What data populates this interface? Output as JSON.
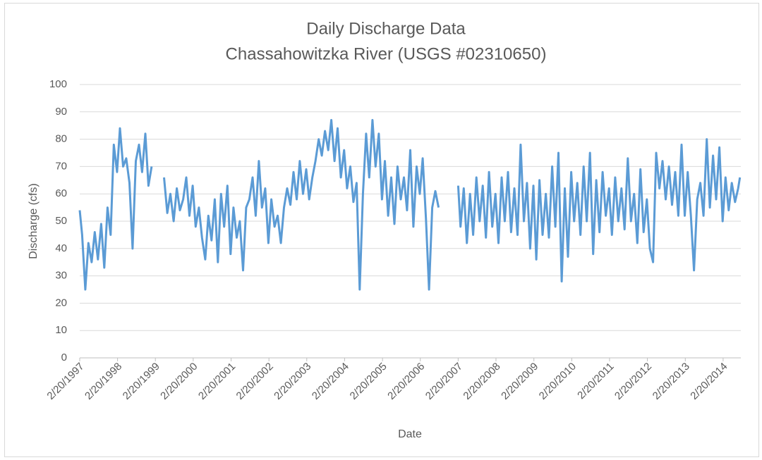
{
  "chart_data": {
    "type": "line",
    "title": "Daily Discharge Data",
    "subtitle": "Chassahowitzka River (USGS #02310650)",
    "x_label": "Date",
    "y_label": "Discharge (cfs)",
    "xlim": [
      "1997-02-20",
      "2014-08-10"
    ],
    "ylim": [
      0,
      100
    ],
    "yticks": [
      0,
      10,
      20,
      30,
      40,
      50,
      60,
      70,
      80,
      90,
      100
    ],
    "grid": true,
    "xticks": [
      {
        "value": "1997-02-20",
        "label": "2/20/1997"
      },
      {
        "value": "1998-02-20",
        "label": "2/20/1998"
      },
      {
        "value": "1999-02-20",
        "label": "2/20/1999"
      },
      {
        "value": "2000-02-20",
        "label": "2/20/2000"
      },
      {
        "value": "2001-02-20",
        "label": "2/20/2001"
      },
      {
        "value": "2002-02-20",
        "label": "2/20/2002"
      },
      {
        "value": "2003-02-20",
        "label": "2/20/2003"
      },
      {
        "value": "2004-02-20",
        "label": "2/20/2004"
      },
      {
        "value": "2005-02-20",
        "label": "2/20/2005"
      },
      {
        "value": "2006-02-20",
        "label": "2/20/2006"
      },
      {
        "value": "2007-02-20",
        "label": "2/20/2007"
      },
      {
        "value": "2008-02-20",
        "label": "2/20/2008"
      },
      {
        "value": "2009-02-20",
        "label": "2/20/2009"
      },
      {
        "value": "2010-02-20",
        "label": "2/20/2010"
      },
      {
        "value": "2011-02-20",
        "label": "2/20/2011"
      },
      {
        "value": "2012-02-20",
        "label": "2/20/2012"
      },
      {
        "value": "2013-02-20",
        "label": "2/20/2013"
      },
      {
        "value": "2014-02-20",
        "label": "2/20/2014"
      }
    ],
    "x": [
      "1997-02-20",
      "1997-03-15",
      "1997-04-15",
      "1997-05-15",
      "1997-06-15",
      "1997-07-15",
      "1997-08-15",
      "1997-09-15",
      "1997-10-15",
      "1997-11-15",
      "1997-12-15",
      "1998-01-15",
      "1998-02-15",
      "1998-03-15",
      "1998-04-15",
      "1998-05-15",
      "1998-06-15",
      "1998-07-15",
      "1998-08-15",
      "1998-09-15",
      "1998-10-15",
      "1998-11-15",
      "1998-12-15",
      "1999-01-15",
      "1999-03-15",
      "1999-05-15",
      "1999-06-15",
      "1999-07-15",
      "1999-08-15",
      "1999-09-15",
      "1999-10-15",
      "1999-11-15",
      "1999-12-15",
      "2000-01-15",
      "2000-02-15",
      "2000-03-15",
      "2000-04-15",
      "2000-05-15",
      "2000-06-15",
      "2000-07-15",
      "2000-08-15",
      "2000-09-15",
      "2000-10-15",
      "2000-11-15",
      "2000-12-15",
      "2001-01-15",
      "2001-02-15",
      "2001-03-15",
      "2001-04-15",
      "2001-05-15",
      "2001-06-15",
      "2001-07-15",
      "2001-08-15",
      "2001-09-15",
      "2001-10-15",
      "2001-11-15",
      "2001-12-15",
      "2002-01-15",
      "2002-02-15",
      "2002-03-15",
      "2002-04-15",
      "2002-05-15",
      "2002-06-15",
      "2002-07-15",
      "2002-08-15",
      "2002-09-15",
      "2002-10-15",
      "2002-11-15",
      "2002-12-15",
      "2003-01-15",
      "2003-02-15",
      "2003-03-15",
      "2003-04-15",
      "2003-05-15",
      "2003-06-15",
      "2003-07-15",
      "2003-08-15",
      "2003-09-15",
      "2003-10-15",
      "2003-11-15",
      "2003-12-15",
      "2004-01-15",
      "2004-02-15",
      "2004-03-15",
      "2004-04-15",
      "2004-05-15",
      "2004-06-15",
      "2004-07-15",
      "2004-08-15",
      "2004-09-15",
      "2004-10-15",
      "2004-11-15",
      "2004-12-15",
      "2005-01-15",
      "2005-02-15",
      "2005-03-15",
      "2005-04-15",
      "2005-05-15",
      "2005-06-15",
      "2005-07-15",
      "2005-08-15",
      "2005-09-15",
      "2005-10-15",
      "2005-11-15",
      "2005-12-15",
      "2006-01-15",
      "2006-02-15",
      "2006-03-15",
      "2006-04-15",
      "2006-05-15",
      "2006-06-15",
      "2006-07-15",
      "2006-08-15",
      "2006-10-15",
      "2007-02-20",
      "2007-03-15",
      "2007-04-15",
      "2007-05-15",
      "2007-06-15",
      "2007-07-15",
      "2007-08-15",
      "2007-09-15",
      "2007-10-15",
      "2007-11-15",
      "2007-12-15",
      "2008-01-15",
      "2008-02-15",
      "2008-03-15",
      "2008-04-15",
      "2008-05-15",
      "2008-06-15",
      "2008-07-15",
      "2008-08-15",
      "2008-09-15",
      "2008-10-15",
      "2008-11-15",
      "2008-12-15",
      "2009-01-15",
      "2009-02-15",
      "2009-03-15",
      "2009-04-15",
      "2009-05-15",
      "2009-06-15",
      "2009-07-15",
      "2009-08-15",
      "2009-09-15",
      "2009-10-15",
      "2009-11-15",
      "2009-12-15",
      "2010-01-15",
      "2010-02-15",
      "2010-03-15",
      "2010-04-15",
      "2010-05-15",
      "2010-06-15",
      "2010-07-15",
      "2010-08-15",
      "2010-09-15",
      "2010-10-15",
      "2010-11-15",
      "2010-12-15",
      "2011-01-15",
      "2011-02-15",
      "2011-03-15",
      "2011-04-15",
      "2011-05-15",
      "2011-06-15",
      "2011-07-15",
      "2011-08-15",
      "2011-09-15",
      "2011-10-15",
      "2011-11-15",
      "2011-12-15",
      "2012-01-15",
      "2012-02-15",
      "2012-03-15",
      "2012-04-15",
      "2012-05-15",
      "2012-06-15",
      "2012-07-15",
      "2012-08-15",
      "2012-09-15",
      "2012-10-15",
      "2012-11-15",
      "2012-12-15",
      "2013-01-15",
      "2013-02-15",
      "2013-03-15",
      "2013-04-15",
      "2013-05-15",
      "2013-06-15",
      "2013-07-15",
      "2013-08-15",
      "2013-09-15",
      "2013-10-15",
      "2013-11-15",
      "2013-12-15",
      "2014-01-15",
      "2014-02-15",
      "2014-03-15",
      "2014-04-15",
      "2014-05-15",
      "2014-06-15",
      "2014-07-15",
      "2014-08-01"
    ],
    "series": [
      {
        "name": "Discharge",
        "color": "#5b9bd5",
        "values": [
          54,
          45,
          25,
          42,
          35,
          46,
          36,
          49,
          33,
          55,
          45,
          78,
          68,
          84,
          70,
          73,
          64,
          40,
          72,
          78,
          68,
          82,
          63,
          70,
          null,
          66,
          53,
          60,
          50,
          62,
          54,
          58,
          66,
          52,
          63,
          48,
          55,
          44,
          36,
          52,
          43,
          58,
          35,
          60,
          48,
          63,
          38,
          55,
          44,
          50,
          32,
          55,
          58,
          66,
          52,
          72,
          55,
          62,
          42,
          58,
          48,
          52,
          42,
          55,
          62,
          56,
          68,
          58,
          72,
          60,
          69,
          58,
          66,
          72,
          80,
          74,
          83,
          76,
          87,
          72,
          84,
          66,
          76,
          62,
          70,
          57,
          64,
          25,
          60,
          82,
          66,
          87,
          70,
          82,
          58,
          72,
          52,
          66,
          49,
          70,
          58,
          66,
          54,
          76,
          48,
          70,
          60,
          73,
          51,
          25,
          55,
          61,
          55,
          null,
          63,
          48,
          62,
          42,
          60,
          45,
          66,
          50,
          63,
          44,
          68,
          48,
          60,
          42,
          66,
          50,
          68,
          46,
          62,
          45,
          78,
          50,
          64,
          40,
          63,
          36,
          65,
          45,
          60,
          44,
          70,
          48,
          75,
          28,
          62,
          37,
          68,
          50,
          64,
          45,
          70,
          50,
          75,
          38,
          65,
          46,
          68,
          52,
          62,
          45,
          66,
          50,
          62,
          47,
          73,
          50,
          60,
          42,
          69,
          46,
          58,
          40,
          35,
          75,
          62,
          72,
          58,
          70,
          56,
          68,
          52,
          78,
          52,
          68,
          52,
          32,
          58,
          64,
          52,
          80,
          55,
          74,
          58,
          77,
          50,
          66,
          54,
          64,
          57,
          62,
          66
        ]
      }
    ]
  }
}
